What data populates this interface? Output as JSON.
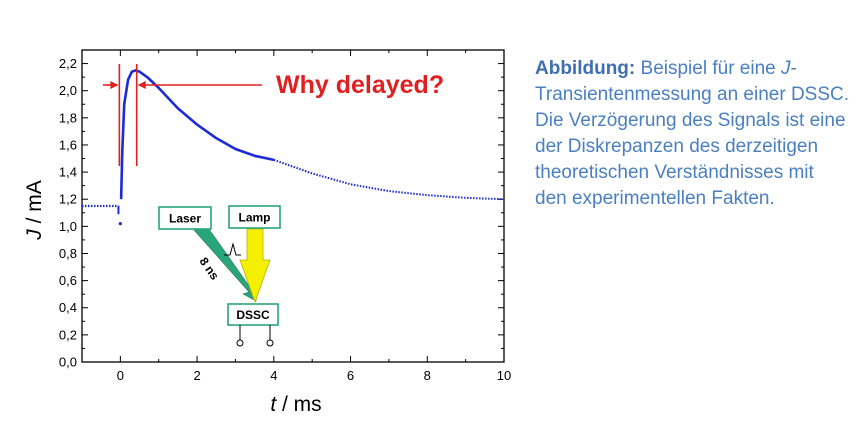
{
  "chart_data": {
    "type": "scatter",
    "xlabel_symbol": "t",
    "xlabel_unit": " / ms",
    "ylabel_symbol": "J",
    "ylabel_unit": " / mA",
    "xlim": [
      -1,
      10
    ],
    "ylim": [
      0,
      2.3
    ],
    "xticks": [
      "0",
      "2",
      "4",
      "6",
      "8",
      "10"
    ],
    "xtick_values": [
      0,
      2,
      4,
      6,
      8,
      10
    ],
    "yticks": [
      "0,0",
      "0,2",
      "0,4",
      "0,6",
      "0,8",
      "1,0",
      "1,2",
      "1,4",
      "1,6",
      "1,8",
      "2,0",
      "2,2"
    ],
    "ytick_values": [
      0,
      0.2,
      0.4,
      0.6,
      0.8,
      1.0,
      1.2,
      1.4,
      1.6,
      1.8,
      2.0,
      2.2
    ],
    "series": [
      {
        "color": "#1c2bd6",
        "x": [
          -1.0,
          -0.5,
          -0.05,
          0.0,
          0.05,
          0.1,
          0.2,
          0.3,
          0.4,
          0.5,
          0.7,
          1.0,
          1.5,
          2.0,
          2.5,
          3.0,
          3.5,
          4.0,
          5.0,
          6.0,
          7.0,
          8.0,
          9.0,
          10.0
        ],
        "y": [
          1.15,
          1.15,
          1.15,
          1.02,
          1.55,
          1.9,
          2.08,
          2.14,
          2.15,
          2.14,
          2.1,
          2.02,
          1.87,
          1.75,
          1.65,
          1.57,
          1.52,
          1.49,
          1.39,
          1.31,
          1.26,
          1.23,
          1.21,
          1.2
        ]
      }
    ],
    "annotation": {
      "text": "Why delayed?",
      "color": "#e02020",
      "x_start": 0.0,
      "x_peak": 0.4
    },
    "inset": {
      "laser_label": "Laser",
      "lamp_label": "Lamp",
      "cell_label": "DSSC",
      "pulse_label": "8 ns",
      "box_border": "#2aa57a",
      "laser_arrow": "#2aa57a",
      "lamp_arrow": "#f5f000"
    }
  },
  "caption": {
    "lead": "Abbildung:",
    "part1": " Beispiel für eine ",
    "italic": "J",
    "part2": "-Transientenmessung an einer DSSC. Die Verzögerung des Signals ist eine der Diskrepanzen des derzeitigen theoretischen Verständnisses mit den experimentellen Fakten."
  }
}
